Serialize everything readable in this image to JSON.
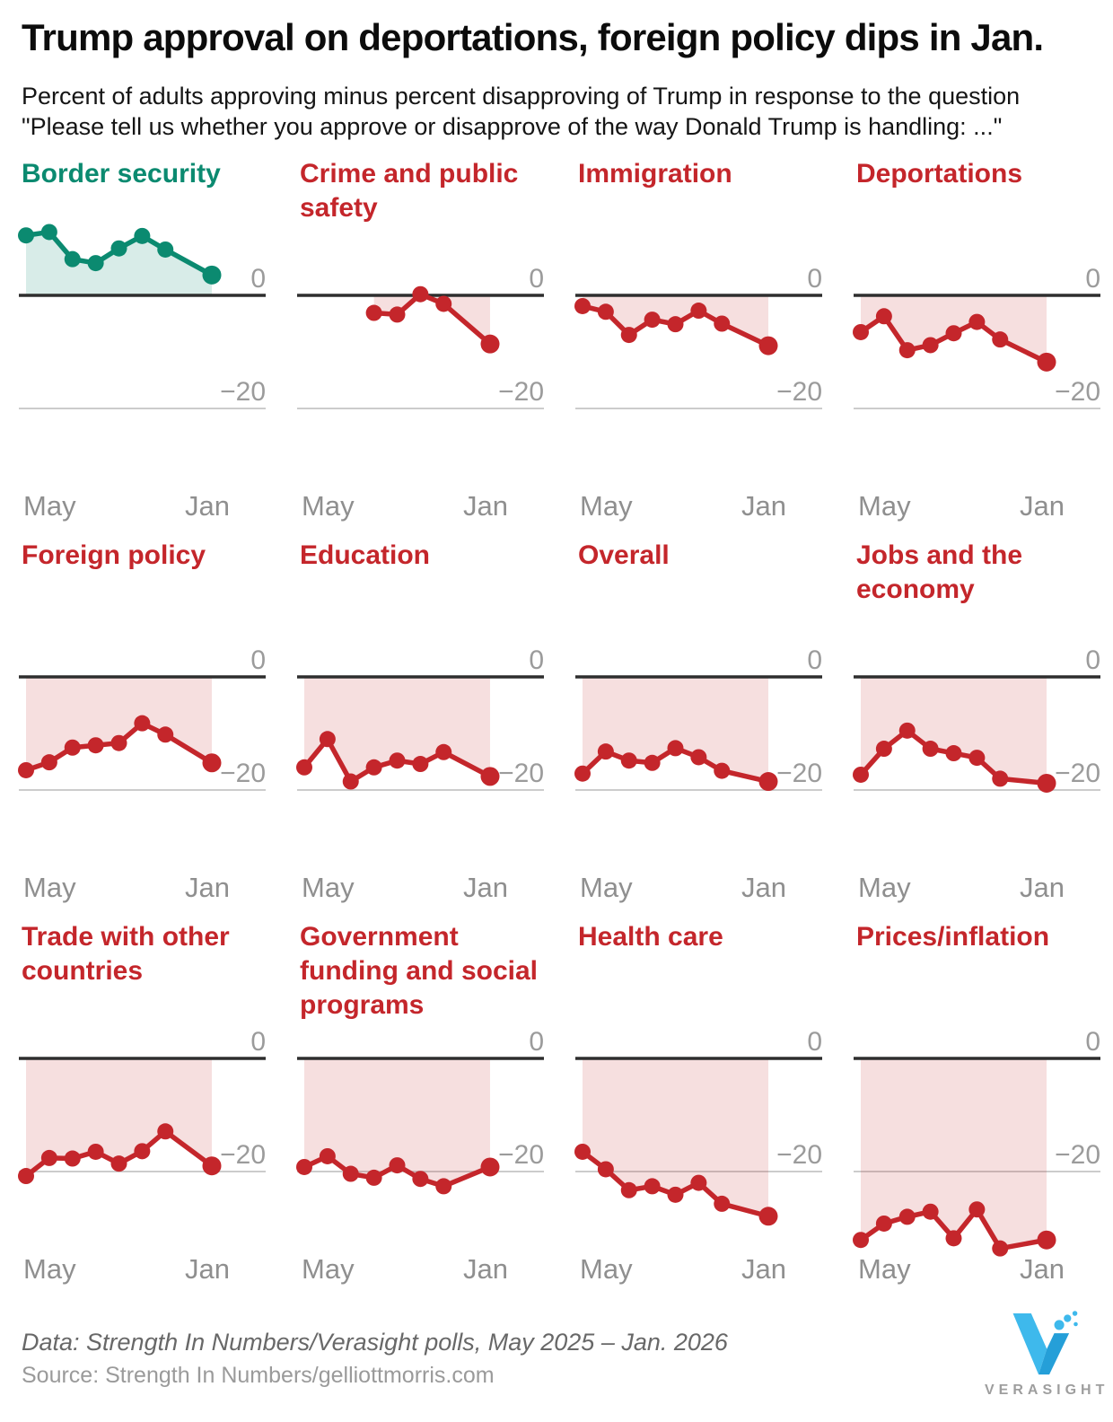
{
  "header": {
    "title": "Trump approval on deportations, foreign policy dips in Jan.",
    "subtitle_line1": "Percent of adults approving minus percent disapproving of Trump in response to the question",
    "subtitle_line2": "\"Please tell us whether you approve or disapprove of the way Donald Trump is handling: ...\""
  },
  "axis": {
    "x_left": "May",
    "x_right": "Jan",
    "y_ticks": [
      "0",
      "−20"
    ],
    "ylim": [
      -36,
      13
    ],
    "x_note": "x values are months after May 2025; 8 = Jan 2026 (no point between Nov and Jan)"
  },
  "colors": {
    "green": "#0b8a70",
    "green_fill": "rgba(11,138,112,0.16)",
    "red": "#c4262b",
    "red_fill": "rgba(196,38,43,0.15)",
    "zero_line": "#2e2e2e",
    "gridline": "#cccccc",
    "tick_label": "#9b9b9b",
    "month_label": "#8f8f8f",
    "logo_blue_light": "#3eb9ec",
    "logo_blue_dark": "#259fd8",
    "logo_text": "#9e9e9e"
  },
  "chart_data": [
    {
      "type": "line",
      "title": "Border security",
      "color": "green",
      "x_months": [
        0,
        1,
        2,
        3,
        4,
        5,
        6,
        8
      ],
      "values": [
        10.6,
        11.2,
        6.4,
        5.7,
        8.3,
        10.5,
        8.1,
        3.6
      ]
    },
    {
      "type": "line",
      "title": "Crime and public safety",
      "color": "red",
      "x_months": [
        3,
        4,
        5,
        6,
        8
      ],
      "values": [
        -3.1,
        -3.4,
        0.2,
        -1.5,
        -8.6
      ]
    },
    {
      "type": "line",
      "title": "Immigration",
      "color": "red",
      "x_months": [
        0,
        1,
        2,
        3,
        4,
        5,
        6,
        8
      ],
      "values": [
        -1.9,
        -2.9,
        -7.0,
        -4.3,
        -5.1,
        -2.7,
        -5.0,
        -8.9
      ]
    },
    {
      "type": "line",
      "title": "Deportations",
      "color": "red",
      "x_months": [
        0,
        1,
        2,
        3,
        4,
        5,
        6,
        8
      ],
      "values": [
        -6.5,
        -3.7,
        -9.7,
        -8.8,
        -6.7,
        -4.7,
        -7.8,
        -11.8
      ]
    },
    {
      "type": "line",
      "title": "Foreign policy",
      "color": "red",
      "x_months": [
        0,
        1,
        2,
        3,
        4,
        5,
        6,
        8
      ],
      "values": [
        -16.5,
        -15.1,
        -12.5,
        -12.1,
        -11.7,
        -8.2,
        -10.2,
        -15.2
      ]
    },
    {
      "type": "line",
      "title": "Education",
      "color": "red",
      "x_months": [
        0,
        1,
        2,
        3,
        4,
        5,
        6,
        8
      ],
      "values": [
        -16.0,
        -11.0,
        -18.5,
        -16.0,
        -14.8,
        -15.4,
        -13.3,
        -17.6
      ]
    },
    {
      "type": "line",
      "title": "Overall",
      "color": "red",
      "x_months": [
        0,
        1,
        2,
        3,
        4,
        5,
        6,
        8
      ],
      "values": [
        -17.1,
        -13.2,
        -14.8,
        -15.2,
        -12.6,
        -14.2,
        -16.6,
        -18.5
      ]
    },
    {
      "type": "line",
      "title": "Jobs and the economy",
      "color": "red",
      "x_months": [
        0,
        1,
        2,
        3,
        4,
        5,
        6,
        8
      ],
      "values": [
        -17.3,
        -12.7,
        -9.5,
        -12.7,
        -13.5,
        -14.3,
        -18.0,
        -18.8
      ]
    },
    {
      "type": "line",
      "title": "Trade with other countries",
      "color": "red",
      "x_months": [
        0,
        1,
        2,
        3,
        4,
        5,
        6,
        8
      ],
      "values": [
        -20.8,
        -17.6,
        -17.7,
        -16.5,
        -18.6,
        -16.4,
        -12.9,
        -19.0
      ]
    },
    {
      "type": "line",
      "title": "Government funding and social programs",
      "color": "red",
      "x_months": [
        0,
        1,
        2,
        3,
        4,
        5,
        6,
        8
      ],
      "values": [
        -19.2,
        -17.3,
        -20.4,
        -21.1,
        -18.9,
        -21.3,
        -22.6,
        -19.2
      ]
    },
    {
      "type": "line",
      "title": "Health care",
      "color": "red",
      "x_months": [
        0,
        1,
        2,
        3,
        4,
        5,
        6,
        8
      ],
      "values": [
        -16.5,
        -19.6,
        -23.3,
        -22.6,
        -24.1,
        -22.0,
        -25.7,
        -27.9
      ]
    },
    {
      "type": "line",
      "title": "Prices/inflation",
      "color": "red",
      "x_months": [
        0,
        1,
        2,
        3,
        4,
        5,
        6,
        8
      ],
      "values": [
        -32.1,
        -29.2,
        -28.0,
        -27.1,
        -31.8,
        -26.7,
        -33.6,
        -32.1
      ]
    }
  ],
  "footer": {
    "data_line": "Data: Strength In Numbers/Verasight polls, May 2025 – Jan. 2026",
    "source_line": "Source: Strength In Numbers/gelliottmorris.com",
    "logo_text": "VERASIGHT"
  }
}
